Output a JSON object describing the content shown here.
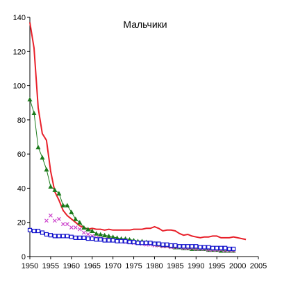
{
  "chart_data": {
    "type": "line",
    "title": "Мальчики",
    "xlabel": "",
    "ylabel": "",
    "xlim": [
      1950,
      2005
    ],
    "ylim": [
      0,
      140
    ],
    "x_ticks": [
      1950,
      1955,
      1960,
      1965,
      1970,
      1975,
      1980,
      1985,
      1990,
      1995,
      2000,
      2005
    ],
    "y_ticks": [
      0,
      20,
      40,
      60,
      80,
      100,
      120,
      140
    ],
    "x_tick_labels": [
      "1950",
      "1955",
      "1960",
      "1965",
      "1970",
      "1975",
      "1980",
      "1985",
      "1990",
      "1995",
      "2000",
      "2005"
    ],
    "y_tick_labels": [
      "0",
      "20",
      "40",
      "60",
      "80",
      "100",
      "120",
      "140"
    ],
    "grid": false,
    "legend": "none",
    "series": [
      {
        "color": "#e8202a",
        "marker": "none",
        "x": [
          1950,
          1951,
          1952,
          1953,
          1954,
          1955,
          1956,
          1957,
          1958,
          1959,
          1960,
          1961,
          1962,
          1963,
          1964,
          1965,
          1966,
          1967,
          1968,
          1969,
          1970,
          1971,
          1972,
          1973,
          1974,
          1975,
          1976,
          1977,
          1978,
          1979,
          1980,
          1981,
          1982,
          1983,
          1984,
          1985,
          1986,
          1987,
          1988,
          1989,
          1990,
          1991,
          1992,
          1993,
          1994,
          1995,
          1996,
          1997,
          1998,
          1999,
          2000,
          2001,
          2002
        ],
        "y": [
          137,
          122,
          87,
          72,
          68,
          50,
          38,
          33,
          27,
          24,
          22,
          20,
          18,
          17,
          16,
          16.5,
          16,
          16,
          15.5,
          16,
          15.5,
          15.5,
          15.5,
          15.5,
          15.5,
          16,
          16,
          16,
          16.5,
          16.5,
          17.5,
          16.5,
          15,
          15.5,
          15.5,
          15,
          13.5,
          12.5,
          13,
          12,
          11.5,
          11,
          11.5,
          11.5,
          12,
          12,
          11,
          11,
          11,
          11.5,
          11,
          10.5,
          10
        ]
      },
      {
        "color": "#1a7a1a",
        "marker": "triangle",
        "x": [
          1950,
          1951,
          1952,
          1953,
          1954,
          1955,
          1956,
          1957,
          1958,
          1959,
          1960,
          1961,
          1962,
          1963,
          1964,
          1965,
          1966,
          1967,
          1968,
          1969,
          1970,
          1971,
          1972,
          1973,
          1974,
          1975,
          1976,
          1977,
          1978,
          1979,
          1980,
          1981,
          1982,
          1983,
          1984,
          1985,
          1986,
          1987,
          1988,
          1989,
          1990,
          1991,
          1992,
          1993,
          1994,
          1995,
          1996,
          1997,
          1998,
          1999
        ],
        "y": [
          92,
          84,
          64,
          58,
          51,
          41,
          39,
          37,
          30,
          30,
          26,
          22,
          20,
          17,
          16,
          15,
          13.5,
          13,
          12.5,
          12,
          11.5,
          11,
          10.5,
          10.5,
          10,
          9.5,
          9,
          9,
          8.5,
          8,
          7.5,
          7,
          6.5,
          6.5,
          6,
          5.5,
          5.5,
          5,
          5,
          4.5,
          4.5,
          4.5,
          4.5,
          4,
          4,
          4,
          3.5,
          3.5,
          3.5,
          3.5
        ]
      },
      {
        "color": "#cc44cc",
        "marker": "x",
        "x": [
          1954,
          1955,
          1956,
          1957,
          1958,
          1959,
          1960,
          1961,
          1962,
          1963,
          1964,
          1965,
          1966,
          1967,
          1968,
          1969,
          1970,
          1971,
          1972,
          1973,
          1974,
          1975,
          1976,
          1977,
          1978,
          1979,
          1980,
          1981,
          1982,
          1983,
          1984,
          1985,
          1986,
          1987,
          1988,
          1989,
          1990,
          1991,
          1992,
          1993,
          1994,
          1995,
          1996,
          1997,
          1998,
          1999
        ],
        "y": [
          21,
          24,
          21,
          22,
          19,
          19,
          17,
          17,
          16,
          14,
          13,
          12,
          11,
          10.5,
          10,
          10,
          9.5,
          9,
          9,
          8.5,
          8.5,
          8,
          8,
          7.5,
          7,
          7,
          6.5,
          6.5,
          6,
          6,
          5.5,
          5.5,
          5.5,
          5,
          5,
          5,
          4.5,
          4.5,
          4.5,
          4,
          4,
          4,
          4,
          3.5,
          3.5,
          3.5
        ]
      },
      {
        "color": "#1111cc",
        "marker": "square",
        "x": [
          1950,
          1951,
          1952,
          1953,
          1954,
          1955,
          1956,
          1957,
          1958,
          1959,
          1960,
          1961,
          1962,
          1963,
          1964,
          1965,
          1966,
          1967,
          1968,
          1969,
          1970,
          1971,
          1972,
          1973,
          1974,
          1975,
          1976,
          1977,
          1978,
          1979,
          1980,
          1981,
          1982,
          1983,
          1984,
          1985,
          1986,
          1987,
          1988,
          1989,
          1990,
          1991,
          1992,
          1993,
          1994,
          1995,
          1996,
          1997,
          1998,
          1999
        ],
        "y": [
          15.5,
          15,
          15,
          14,
          13,
          12.5,
          12,
          12,
          12,
          12,
          11.5,
          11,
          11,
          11,
          10.5,
          10.5,
          10,
          10,
          9.5,
          9.5,
          9.5,
          9,
          9,
          9,
          8.5,
          8.5,
          8,
          8,
          8,
          8,
          7.5,
          7.5,
          7,
          7,
          6.5,
          6.5,
          6,
          6,
          6,
          6,
          6,
          5.5,
          5.5,
          5.5,
          5,
          5,
          5,
          5,
          4.5,
          4.5
        ]
      }
    ]
  }
}
